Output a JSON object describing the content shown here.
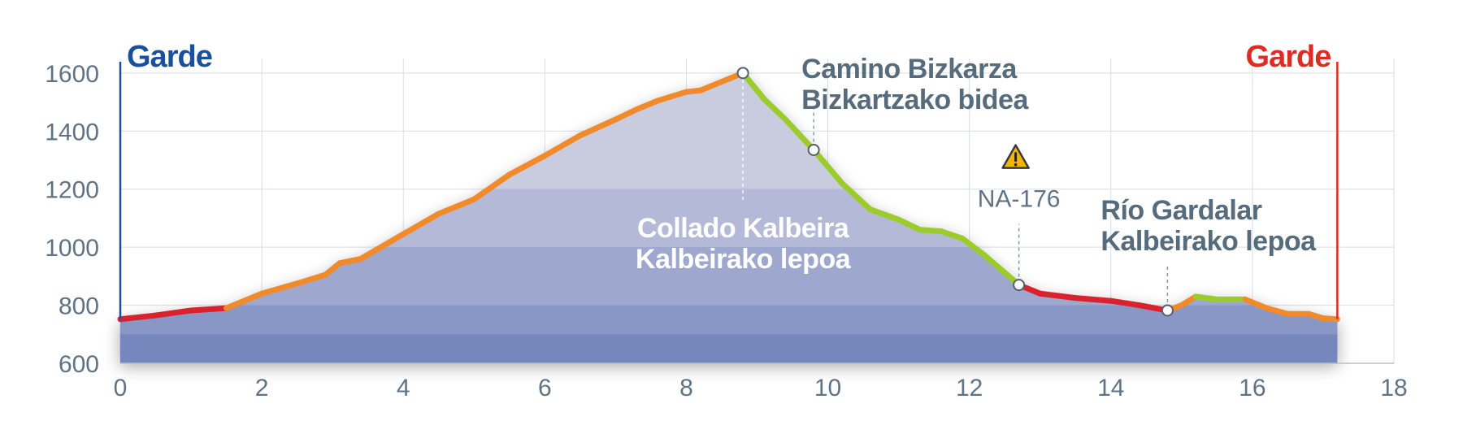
{
  "chart_data": {
    "type": "area",
    "x": [
      0,
      0.5,
      1,
      1.5,
      2,
      2.5,
      2.9,
      3.1,
      3.4,
      4,
      4.5,
      5,
      5.5,
      6,
      6.5,
      7,
      7.3,
      7.6,
      8,
      8.2,
      8.5,
      8.8,
      9.1,
      9.4,
      9.8,
      10.2,
      10.6,
      11,
      11.3,
      11.6,
      11.9,
      12.2,
      12.7,
      13,
      13.5,
      14,
      14.4,
      14.8,
      15.0,
      15.2,
      15.5,
      15.9,
      16.2,
      16.5,
      16.8,
      17.0,
      17.2
    ],
    "series": [
      {
        "values": [
          752,
          765,
          782,
          790,
          840,
          875,
          905,
          945,
          960,
          1045,
          1115,
          1165,
          1250,
          1315,
          1385,
          1440,
          1475,
          1505,
          1535,
          1540,
          1570,
          1600,
          1510,
          1440,
          1335,
          1220,
          1130,
          1095,
          1060,
          1055,
          1030,
          975,
          870,
          840,
          825,
          815,
          800,
          782,
          800,
          830,
          820,
          820,
          790,
          770,
          770,
          755,
          752
        ]
      }
    ],
    "segment_colors": [
      "red",
      "red",
      "red",
      "orange",
      "orange",
      "orange",
      "orange",
      "orange",
      "orange",
      "orange",
      "orange",
      "orange",
      "orange",
      "orange",
      "orange",
      "orange",
      "orange",
      "orange",
      "orange",
      "orange",
      "orange",
      "green",
      "green",
      "green",
      "green",
      "green",
      "green",
      "green",
      "green",
      "green",
      "green",
      "green",
      "red",
      "red",
      "red",
      "red",
      "red",
      "orange",
      "orange",
      "green",
      "green",
      "orange",
      "orange",
      "orange",
      "orange",
      "orange"
    ],
    "colors": {
      "red": "#d8232f",
      "orange": "#f08a2a",
      "green": "#9ccc2c",
      "start_line": "#1a4f99",
      "end_line": "#e02a24",
      "fill_bands": [
        "#c9ccdf",
        "#b3b9d7",
        "#9ea8cf",
        "#8997c6",
        "#7587bd"
      ]
    },
    "xlim": [
      0,
      18
    ],
    "ylim": [
      600,
      1650
    ],
    "x_ticks": [
      "0",
      "2",
      "4",
      "6",
      "8",
      "10",
      "12",
      "14",
      "16",
      "18"
    ],
    "y_ticks": [
      "600",
      "800",
      "1000",
      "1200",
      "1400",
      "1600"
    ],
    "grid": true,
    "start_label": "Garde",
    "end_label": "Garde",
    "annotations": [
      {
        "x": 8.8,
        "y": 1600,
        "lines": [
          "Collado Kalbeira",
          "Kalbeirako lepoa"
        ],
        "style": "white"
      },
      {
        "x": 9.8,
        "y": 1335,
        "lines": [
          "Camino Bizkarza",
          "Bizkartzako bidea"
        ],
        "style": "dark"
      },
      {
        "x": 12.7,
        "y": 870,
        "lines": [
          "NA-176"
        ],
        "style": "road",
        "icon": "warning-icon"
      },
      {
        "x": 14.8,
        "y": 782,
        "lines": [
          "Río Gardalar",
          "Kalbeirako lepoa"
        ],
        "style": "dark"
      }
    ]
  }
}
